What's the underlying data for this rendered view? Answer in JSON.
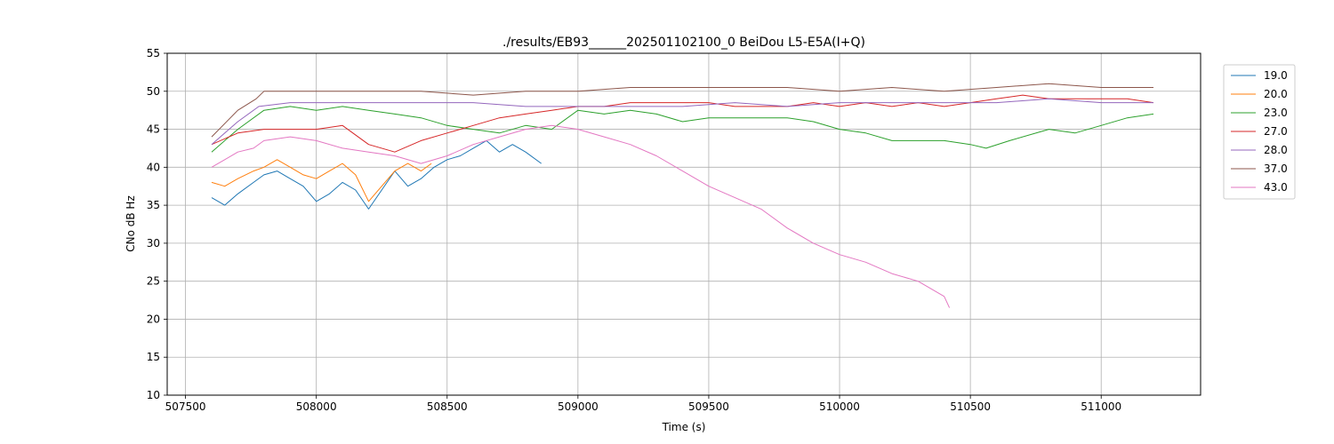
{
  "chart_data": {
    "type": "line",
    "title": "./results/EB93______202501102100_0 BeiDou L5-E5A(I+Q)",
    "xlabel": "Time (s)",
    "ylabel": "CNo dB Hz",
    "xlim": [
      507430,
      511380
    ],
    "ylim": [
      10,
      55
    ],
    "xticks": [
      507500,
      508000,
      508500,
      509000,
      509500,
      510000,
      510500,
      511000
    ],
    "yticks": [
      10,
      15,
      20,
      25,
      30,
      35,
      40,
      45,
      50,
      55
    ],
    "grid": true,
    "legend_placement": "outside-top-right",
    "series": [
      {
        "name": "19.0",
        "color": "#1f77b4",
        "x": [
          507600,
          507650,
          507700,
          507760,
          507800,
          507850,
          507900,
          507950,
          508000,
          508050,
          508100,
          508150,
          508200,
          508250,
          508300,
          508350,
          508400,
          508450,
          508500,
          508550,
          508600,
          508650,
          508700,
          508750,
          508800,
          508860
        ],
        "y": [
          36,
          35,
          36.5,
          38,
          39,
          39.5,
          38.5,
          37.5,
          35.5,
          36.5,
          38,
          37,
          34.5,
          37,
          39.5,
          37.5,
          38.5,
          40,
          41,
          41.5,
          42.5,
          43.5,
          42,
          43,
          42,
          40.5
        ]
      },
      {
        "name": "20.0",
        "color": "#ff7f0e",
        "x": [
          507600,
          507650,
          507700,
          507760,
          507800,
          507850,
          507900,
          507950,
          508000,
          508050,
          508100,
          508150,
          508200,
          508250,
          508300,
          508350,
          508400,
          508440
        ],
        "y": [
          38,
          37.5,
          38.5,
          39.5,
          40,
          41,
          40,
          39,
          38.5,
          39.5,
          40.5,
          39,
          35.5,
          37.5,
          39.5,
          40.5,
          39.5,
          40.5
        ]
      },
      {
        "name": "23.0",
        "color": "#2ca02c",
        "x": [
          507600,
          507700,
          507800,
          507900,
          508000,
          508100,
          508200,
          508300,
          508400,
          508500,
          508600,
          508700,
          508800,
          508900,
          509000,
          509100,
          509200,
          509300,
          509400,
          509500,
          509600,
          509700,
          509800,
          509900,
          510000,
          510100,
          510200,
          510300,
          510400,
          510500,
          510560,
          510650,
          510800,
          510900,
          511000,
          511100,
          511200
        ],
        "y": [
          42,
          45,
          47.5,
          48,
          47.5,
          48,
          47.5,
          47,
          46.5,
          45.5,
          45,
          44.5,
          45.5,
          45,
          47.5,
          47,
          47.5,
          47,
          46,
          46.5,
          46.5,
          46.5,
          46.5,
          46,
          45,
          44.5,
          43.5,
          43.5,
          43.5,
          43,
          42.5,
          43.5,
          45,
          44.5,
          45.5,
          46.5,
          47
        ]
      },
      {
        "name": "27.0",
        "color": "#d62728",
        "x": [
          507600,
          507700,
          507800,
          507900,
          508000,
          508100,
          508200,
          508300,
          508400,
          508500,
          508600,
          508700,
          508800,
          508900,
          509000,
          509100,
          509200,
          509300,
          509400,
          509500,
          509600,
          509700,
          509800,
          509900,
          510000,
          510100,
          510200,
          510300,
          510400,
          510500,
          510600,
          510700,
          510800,
          510900,
          511000,
          511100,
          511200
        ],
        "y": [
          43,
          44.5,
          45,
          45,
          45,
          45.5,
          43,
          42,
          43.5,
          44.5,
          45.5,
          46.5,
          47,
          47.5,
          48,
          48,
          48.5,
          48.5,
          48.5,
          48.5,
          48,
          48,
          48,
          48.5,
          48,
          48.5,
          48,
          48.5,
          48,
          48.5,
          49,
          49.5,
          49,
          49,
          49,
          49,
          48.5
        ]
      },
      {
        "name": "28.0",
        "color": "#9467bd",
        "x": [
          507600,
          507700,
          507780,
          507900,
          508000,
          508200,
          508400,
          508600,
          508800,
          509000,
          509200,
          509400,
          509600,
          509800,
          510000,
          510200,
          510400,
          510600,
          510800,
          511000,
          511200
        ],
        "y": [
          43,
          46,
          48,
          48.5,
          48.5,
          48.5,
          48.5,
          48.5,
          48,
          48,
          48,
          48,
          48.5,
          48,
          48.5,
          48.5,
          48.5,
          48.5,
          49,
          48.5,
          48.5
        ]
      },
      {
        "name": "37.0",
        "color": "#8c564b",
        "x": [
          507600,
          507700,
          507770,
          507800,
          508000,
          508200,
          508400,
          508600,
          508800,
          509000,
          509200,
          509400,
          509600,
          509800,
          510000,
          510200,
          510400,
          510600,
          510800,
          511000,
          511200
        ],
        "y": [
          44,
          47.5,
          49,
          50,
          50,
          50,
          50,
          49.5,
          50,
          50,
          50.5,
          50.5,
          50.5,
          50.5,
          50,
          50.5,
          50,
          50.5,
          51,
          50.5,
          50.5
        ]
      },
      {
        "name": "43.0",
        "color": "#e377c2",
        "x": [
          507600,
          507650,
          507700,
          507760,
          507800,
          507900,
          508000,
          508100,
          508200,
          508300,
          508400,
          508500,
          508600,
          508700,
          508800,
          508900,
          509000,
          509100,
          509200,
          509300,
          509400,
          509500,
          509600,
          509700,
          509800,
          509900,
          510000,
          510100,
          510200,
          510300,
          510400,
          510420
        ],
        "y": [
          40,
          41,
          42,
          42.5,
          43.5,
          44,
          43.5,
          42.5,
          42,
          41.5,
          40.5,
          41.5,
          43,
          44,
          45,
          45.5,
          45,
          44,
          43,
          41.5,
          39.5,
          37.5,
          36,
          34.5,
          32,
          30,
          28.5,
          27.5,
          26,
          25,
          23,
          21.5
        ]
      }
    ]
  }
}
